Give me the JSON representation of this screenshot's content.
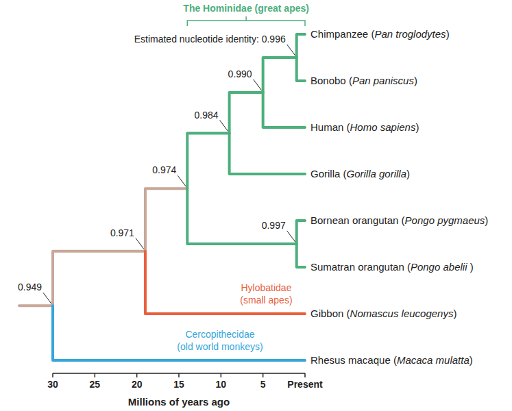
{
  "chart_data": {
    "type": "dendrogram",
    "x_label": "Millions of years ago",
    "xlim": [
      30,
      0
    ],
    "xticks": [
      30,
      25,
      20,
      15,
      10,
      5,
      {
        "value": 0,
        "label": "Present"
      }
    ],
    "tree": {
      "time": 30,
      "identity": 0.949,
      "color": "#c8a89a",
      "children": [
        {
          "time": 19,
          "identity": 0.971,
          "color": "#c8a89a",
          "children": [
            {
              "time": 14,
              "identity": 0.974,
              "color": "#c8a89a",
              "clade_label": [
                "The Hominidae (great apes)"
              ],
              "clade_color": "#4caf7c",
              "children": [
                {
                  "time": 9,
                  "identity": 0.984,
                  "color": "#4caf7c",
                  "children": [
                    {
                      "time": 5,
                      "identity": 0.99,
                      "identity_label": "0.990",
                      "color": "#4caf7c",
                      "children": [
                        {
                          "time": 1,
                          "identity": 0.996,
                          "identity_prefix": "Estimated nucleotide identity:",
                          "color": "#4caf7c",
                          "children": [
                            {
                              "time": 0,
                              "label": "Chimpanzee (Pan troglodytes)",
                              "species": "Pan troglodytes",
                              "color": "#4caf7c"
                            },
                            {
                              "time": 0,
                              "label": "Bonobo (Pan paniscus)",
                              "species": "Pan paniscus",
                              "color": "#4caf7c"
                            }
                          ]
                        },
                        {
                          "time": 0,
                          "label": "Human (Homo sapiens)",
                          "species": "Homo sapiens",
                          "color": "#4caf7c"
                        }
                      ]
                    },
                    {
                      "time": 0,
                      "label": "Gorilla (Gorilla gorilla)",
                      "species": "Gorilla gorilla",
                      "color": "#4caf7c"
                    }
                  ]
                },
                {
                  "time": 1,
                  "identity": 0.997,
                  "color": "#4caf7c",
                  "children": [
                    {
                      "time": 0,
                      "label": "Bornean orangutan (Pongo pygmaeus)",
                      "species": "Pongo pygmaeus",
                      "color": "#4caf7c"
                    },
                    {
                      "time": 0,
                      "label": "Sumatran orangutan (Pongo abelii )",
                      "species": "Pongo abelii",
                      "color": "#4caf7c"
                    }
                  ]
                }
              ]
            },
            {
              "time": 0,
              "label": "Gibbon (Nomascus leucogenys)",
              "species": "Nomascus leucogenys",
              "color": "#e8613e",
              "clade_label": [
                "Hylobatidae",
                "(small apes)"
              ]
            }
          ]
        },
        {
          "time": 0,
          "label": "Rhesus macaque (Macaca mulatta)",
          "species": "Macaca mulatta",
          "color": "#35a6dc",
          "clade_label": [
            "Cercopithecidae",
            "(old world monkeys)"
          ]
        }
      ]
    }
  }
}
